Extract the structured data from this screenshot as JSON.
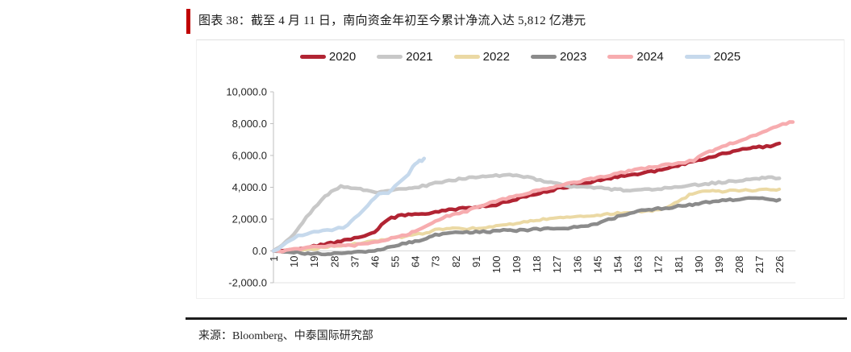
{
  "header": {
    "title": "图表 38：截至 4 月 11 日，南向资金年初至今累计净流入达 5,812 亿港元"
  },
  "footer": {
    "source": "来源：Bloomberg、中泰国际研究部"
  },
  "accent_color": "#C00000",
  "chart_data": {
    "type": "line",
    "unit": "亿港元",
    "legend_position": "top",
    "grid": "zero-line-only",
    "ylim": [
      -2000,
      10000
    ],
    "y_ticks": [
      {
        "value": 10000,
        "label": "10,000.0"
      },
      {
        "value": 8000,
        "label": "8,000.0"
      },
      {
        "value": 6000,
        "label": "6,000.0"
      },
      {
        "value": 4000,
        "label": "4,000.0"
      },
      {
        "value": 2000,
        "label": "2,000.0"
      },
      {
        "value": 0,
        "label": "0.0"
      },
      {
        "value": -2000,
        "label": "-2,000.0"
      }
    ],
    "x_ticks": [
      1,
      10,
      19,
      28,
      37,
      46,
      55,
      64,
      73,
      82,
      91,
      100,
      109,
      118,
      127,
      136,
      145,
      154,
      163,
      172,
      181,
      190,
      199,
      208,
      217,
      226
    ],
    "x_axis_meaning": "trading day of year",
    "series": [
      {
        "name": "2020",
        "color": "#B12433",
        "width": 4.5,
        "points": [
          [
            1,
            0
          ],
          [
            5,
            30
          ],
          [
            10,
            120
          ],
          [
            19,
            300
          ],
          [
            28,
            520
          ],
          [
            37,
            800
          ],
          [
            43,
            980
          ],
          [
            46,
            1150
          ],
          [
            49,
            1600
          ],
          [
            52,
            2000
          ],
          [
            55,
            2120
          ],
          [
            58,
            2250
          ],
          [
            64,
            2300
          ],
          [
            70,
            2350
          ],
          [
            73,
            2430
          ],
          [
            82,
            2630
          ],
          [
            91,
            2760
          ],
          [
            100,
            2900
          ],
          [
            104,
            3080
          ],
          [
            109,
            3250
          ],
          [
            118,
            3600
          ],
          [
            127,
            3900
          ],
          [
            136,
            4150
          ],
          [
            145,
            4430
          ],
          [
            154,
            4650
          ],
          [
            163,
            4830
          ],
          [
            172,
            5050
          ],
          [
            178,
            5250
          ],
          [
            184,
            5480
          ],
          [
            190,
            5700
          ],
          [
            199,
            6050
          ],
          [
            204,
            6220
          ],
          [
            208,
            6300
          ],
          [
            213,
            6480
          ],
          [
            217,
            6530
          ],
          [
            222,
            6560
          ],
          [
            226,
            6760
          ]
        ]
      },
      {
        "name": "2021",
        "color": "#C8C8C8",
        "width": 4.5,
        "points": [
          [
            1,
            0
          ],
          [
            5,
            400
          ],
          [
            10,
            1050
          ],
          [
            14,
            1800
          ],
          [
            19,
            2700
          ],
          [
            24,
            3400
          ],
          [
            28,
            3830
          ],
          [
            31,
            4080
          ],
          [
            34,
            4000
          ],
          [
            37,
            3930
          ],
          [
            41,
            3850
          ],
          [
            46,
            3680
          ],
          [
            50,
            3750
          ],
          [
            55,
            3830
          ],
          [
            60,
            3900
          ],
          [
            64,
            3990
          ],
          [
            69,
            4120
          ],
          [
            73,
            4250
          ],
          [
            82,
            4480
          ],
          [
            91,
            4640
          ],
          [
            100,
            4720
          ],
          [
            106,
            4760
          ],
          [
            109,
            4740
          ],
          [
            114,
            4620
          ],
          [
            118,
            4500
          ],
          [
            123,
            4340
          ],
          [
            127,
            4220
          ],
          [
            132,
            4090
          ],
          [
            136,
            4030
          ],
          [
            145,
            3960
          ],
          [
            150,
            3900
          ],
          [
            154,
            3850
          ],
          [
            158,
            3820
          ],
          [
            163,
            3810
          ],
          [
            168,
            3850
          ],
          [
            172,
            3890
          ],
          [
            181,
            4030
          ],
          [
            190,
            4160
          ],
          [
            199,
            4300
          ],
          [
            208,
            4420
          ],
          [
            213,
            4500
          ],
          [
            217,
            4570
          ],
          [
            221,
            4610
          ],
          [
            226,
            4560
          ]
        ]
      },
      {
        "name": "2022",
        "color": "#EBD9A4",
        "width": 4,
        "points": [
          [
            1,
            0
          ],
          [
            6,
            -30
          ],
          [
            10,
            30
          ],
          [
            19,
            140
          ],
          [
            28,
            300
          ],
          [
            37,
            460
          ],
          [
            46,
            630
          ],
          [
            55,
            820
          ],
          [
            64,
            1020
          ],
          [
            69,
            1150
          ],
          [
            73,
            1320
          ],
          [
            78,
            1420
          ],
          [
            82,
            1440
          ],
          [
            87,
            1390
          ],
          [
            91,
            1420
          ],
          [
            100,
            1550
          ],
          [
            109,
            1700
          ],
          [
            114,
            1850
          ],
          [
            118,
            1950
          ],
          [
            127,
            2060
          ],
          [
            136,
            2160
          ],
          [
            145,
            2250
          ],
          [
            154,
            2380
          ],
          [
            163,
            2460
          ],
          [
            168,
            2500
          ],
          [
            172,
            2600
          ],
          [
            176,
            2750
          ],
          [
            181,
            3100
          ],
          [
            186,
            3520
          ],
          [
            190,
            3720
          ],
          [
            195,
            3770
          ],
          [
            199,
            3730
          ],
          [
            204,
            3780
          ],
          [
            208,
            3800
          ],
          [
            217,
            3820
          ],
          [
            222,
            3840
          ],
          [
            226,
            3880
          ]
        ]
      },
      {
        "name": "2023",
        "color": "#8B8B8B",
        "width": 4.5,
        "points": [
          [
            1,
            0
          ],
          [
            5,
            -80
          ],
          [
            10,
            -60
          ],
          [
            15,
            -160
          ],
          [
            19,
            -150
          ],
          [
            24,
            -190
          ],
          [
            28,
            -140
          ],
          [
            33,
            -160
          ],
          [
            37,
            -110
          ],
          [
            42,
            -50
          ],
          [
            46,
            20
          ],
          [
            50,
            150
          ],
          [
            55,
            310
          ],
          [
            60,
            490
          ],
          [
            64,
            590
          ],
          [
            69,
            810
          ],
          [
            73,
            1020
          ],
          [
            78,
            1110
          ],
          [
            82,
            1150
          ],
          [
            87,
            1190
          ],
          [
            91,
            1180
          ],
          [
            96,
            1210
          ],
          [
            100,
            1240
          ],
          [
            105,
            1300
          ],
          [
            109,
            1280
          ],
          [
            114,
            1330
          ],
          [
            118,
            1360
          ],
          [
            123,
            1420
          ],
          [
            127,
            1440
          ],
          [
            132,
            1450
          ],
          [
            136,
            1490
          ],
          [
            141,
            1570
          ],
          [
            145,
            1690
          ],
          [
            150,
            1950
          ],
          [
            154,
            2150
          ],
          [
            158,
            2310
          ],
          [
            163,
            2500
          ],
          [
            168,
            2570
          ],
          [
            172,
            2650
          ],
          [
            177,
            2720
          ],
          [
            181,
            2800
          ],
          [
            186,
            2880
          ],
          [
            190,
            2960
          ],
          [
            195,
            3080
          ],
          [
            199,
            3150
          ],
          [
            204,
            3210
          ],
          [
            208,
            3260
          ],
          [
            211,
            3340
          ],
          [
            214,
            3280
          ],
          [
            217,
            3260
          ],
          [
            220,
            3320
          ],
          [
            222,
            3190
          ],
          [
            226,
            3220
          ]
        ]
      },
      {
        "name": "2024",
        "color": "#F7ACAF",
        "width": 4.5,
        "points": [
          [
            1,
            0
          ],
          [
            5,
            -40
          ],
          [
            10,
            80
          ],
          [
            19,
            250
          ],
          [
            24,
            300
          ],
          [
            28,
            310
          ],
          [
            33,
            330
          ],
          [
            37,
            360
          ],
          [
            46,
            560
          ],
          [
            55,
            820
          ],
          [
            60,
            1010
          ],
          [
            64,
            1260
          ],
          [
            69,
            1600
          ],
          [
            73,
            1900
          ],
          [
            78,
            2200
          ],
          [
            82,
            2300
          ],
          [
            87,
            2500
          ],
          [
            91,
            2780
          ],
          [
            96,
            2950
          ],
          [
            100,
            3150
          ],
          [
            109,
            3450
          ],
          [
            118,
            3800
          ],
          [
            127,
            4060
          ],
          [
            136,
            4350
          ],
          [
            145,
            4600
          ],
          [
            154,
            4870
          ],
          [
            159,
            5000
          ],
          [
            163,
            5120
          ],
          [
            168,
            5230
          ],
          [
            172,
            5330
          ],
          [
            177,
            5440
          ],
          [
            181,
            5520
          ],
          [
            184,
            5570
          ],
          [
            186,
            5660
          ],
          [
            188,
            5610
          ],
          [
            190,
            5950
          ],
          [
            195,
            6220
          ],
          [
            199,
            6500
          ],
          [
            204,
            6760
          ],
          [
            208,
            6900
          ],
          [
            213,
            7200
          ],
          [
            217,
            7400
          ],
          [
            222,
            7700
          ],
          [
            226,
            7900
          ],
          [
            229,
            8010
          ],
          [
            232,
            8100
          ]
        ]
      },
      {
        "name": "2025",
        "color": "#C6D9EC",
        "width": 4.5,
        "points": [
          [
            1,
            0
          ],
          [
            3,
            150
          ],
          [
            5,
            330
          ],
          [
            7,
            520
          ],
          [
            10,
            820
          ],
          [
            12,
            950
          ],
          [
            14,
            1030
          ],
          [
            16,
            1110
          ],
          [
            19,
            1180
          ],
          [
            21,
            1260
          ],
          [
            23,
            1280
          ],
          [
            25,
            1360
          ],
          [
            27,
            1340
          ],
          [
            28,
            1390
          ],
          [
            30,
            1460
          ],
          [
            32,
            1490
          ],
          [
            34,
            1620
          ],
          [
            37,
            2080
          ],
          [
            39,
            2260
          ],
          [
            41,
            2520
          ],
          [
            43,
            2820
          ],
          [
            46,
            3350
          ],
          [
            48,
            3560
          ],
          [
            50,
            3660
          ],
          [
            52,
            3620
          ],
          [
            55,
            4080
          ],
          [
            57,
            4310
          ],
          [
            59,
            4520
          ],
          [
            61,
            4830
          ],
          [
            63,
            5320
          ],
          [
            64,
            5450
          ],
          [
            65,
            5560
          ],
          [
            66,
            5650
          ],
          [
            67,
            5600
          ],
          [
            68,
            5812
          ]
        ]
      }
    ],
    "annotation": "2025 line ends at trading day 68 with cumulative net inflow 5,812 亿港元 (as of Apr 11)"
  }
}
